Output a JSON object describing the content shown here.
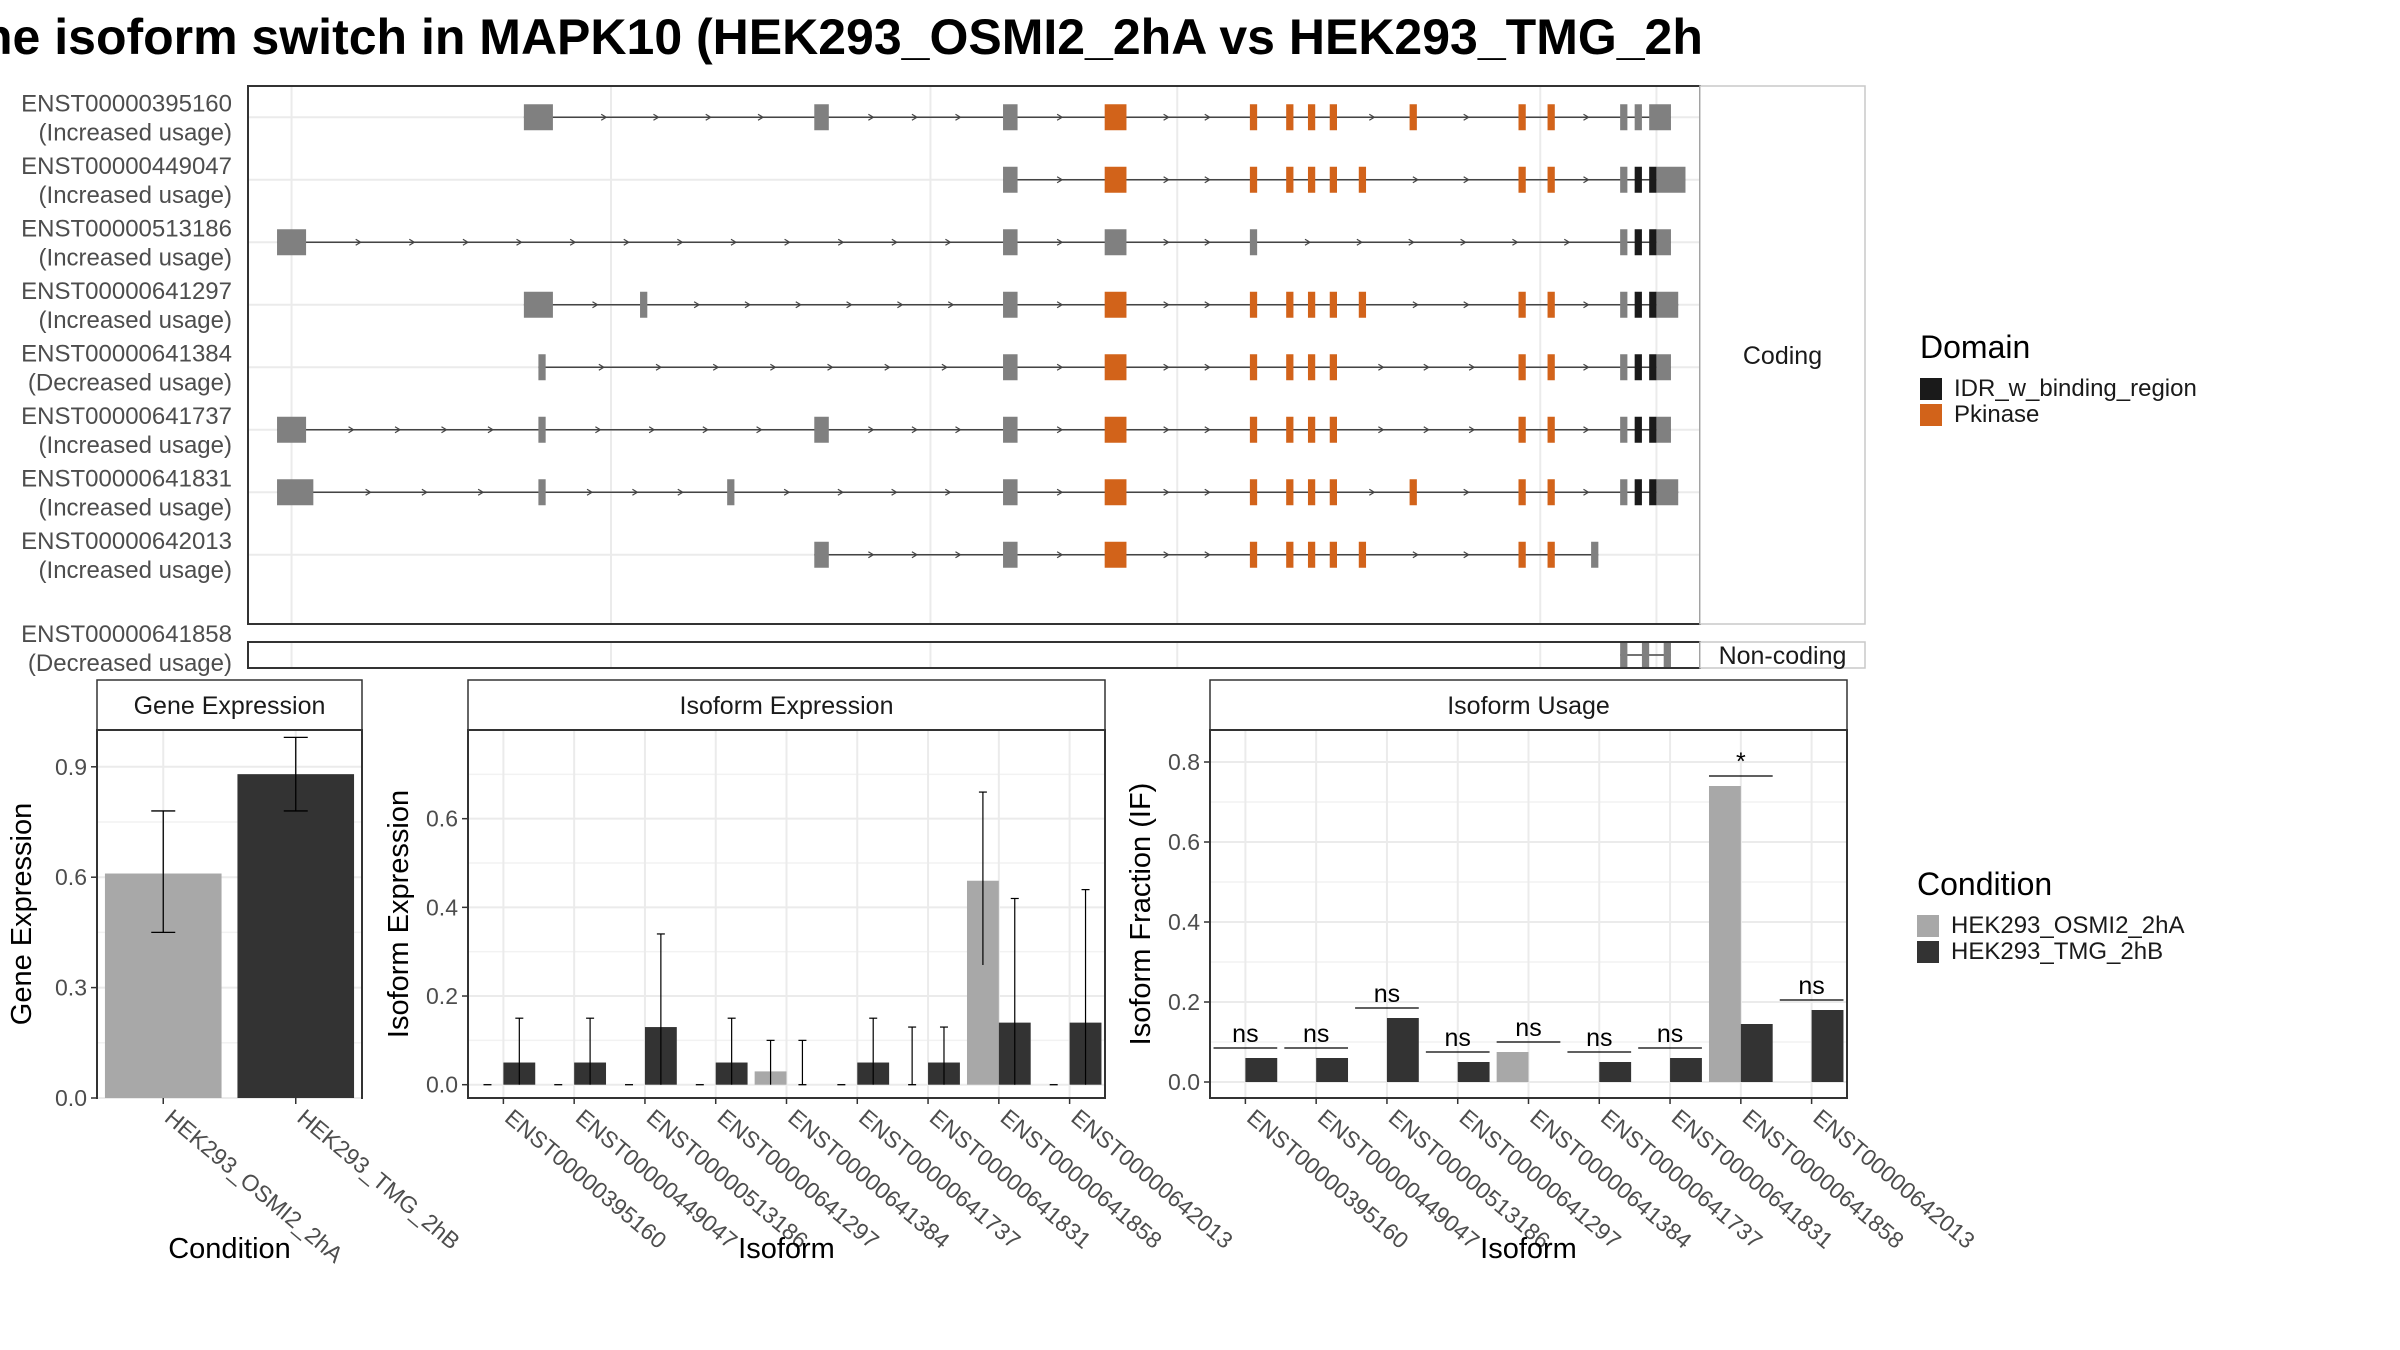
{
  "title": "he isoform switch in MAPK10 (HEK293_OSMI2_2hA vs HEK293_TMG_2h",
  "colors": {
    "exon": "#808080",
    "idr": "#1a1a1a",
    "pkinase": "#d2631a",
    "cond_a": "#a8a8a8",
    "cond_b": "#333333",
    "grid": "#ebebeb",
    "border": "#333333"
  },
  "chart_data": [
    {
      "type": "gene-structure",
      "facets": [
        "Coding",
        "Non-coding"
      ],
      "legend_title": "Domain",
      "legend": [
        {
          "label": "IDR_w_binding_region",
          "color": "#1a1a1a"
        },
        {
          "label": "Pkinase",
          "color": "#d2631a"
        }
      ],
      "transcripts": [
        {
          "id": "ENST00000395160",
          "usage": "(Increased usage)",
          "facet": "Coding",
          "exons": [
            [
              0.19,
              0.21,
              "e"
            ],
            [
              0.39,
              0.4,
              "e"
            ],
            [
              0.52,
              0.53,
              "e"
            ],
            [
              0.59,
              0.605,
              "k"
            ],
            [
              0.69,
              0.695,
              "k"
            ],
            [
              0.715,
              0.72,
              "k"
            ],
            [
              0.73,
              0.735,
              "k"
            ],
            [
              0.745,
              0.75,
              "k"
            ],
            [
              0.8,
              0.805,
              "k"
            ],
            [
              0.875,
              0.88,
              "k"
            ],
            [
              0.895,
              0.9,
              "k"
            ],
            [
              0.945,
              0.95,
              "e"
            ],
            [
              0.955,
              0.96,
              "e"
            ],
            [
              0.965,
              0.98,
              "e"
            ]
          ]
        },
        {
          "id": "ENST00000449047",
          "usage": "(Increased usage)",
          "facet": "Coding",
          "exons": [
            [
              0.52,
              0.53,
              "e"
            ],
            [
              0.59,
              0.605,
              "k"
            ],
            [
              0.69,
              0.695,
              "k"
            ],
            [
              0.715,
              0.72,
              "k"
            ],
            [
              0.73,
              0.735,
              "k"
            ],
            [
              0.745,
              0.75,
              "k"
            ],
            [
              0.765,
              0.77,
              "k"
            ],
            [
              0.875,
              0.88,
              "k"
            ],
            [
              0.895,
              0.9,
              "k"
            ],
            [
              0.945,
              0.95,
              "e"
            ],
            [
              0.955,
              0.96,
              "i"
            ],
            [
              0.965,
              0.97,
              "i"
            ],
            [
              0.97,
              0.99,
              "e"
            ]
          ]
        },
        {
          "id": "ENST00000513186",
          "usage": "(Increased usage)",
          "facet": "Coding",
          "exons": [
            [
              0.02,
              0.04,
              "e"
            ],
            [
              0.52,
              0.53,
              "e"
            ],
            [
              0.59,
              0.605,
              "e"
            ],
            [
              0.69,
              0.695,
              "e"
            ],
            [
              0.945,
              0.95,
              "e"
            ],
            [
              0.955,
              0.96,
              "i"
            ],
            [
              0.965,
              0.97,
              "i"
            ],
            [
              0.97,
              0.98,
              "e"
            ]
          ]
        },
        {
          "id": "ENST00000641297",
          "usage": "(Increased usage)",
          "facet": "Coding",
          "exons": [
            [
              0.19,
              0.21,
              "e"
            ],
            [
              0.27,
              0.275,
              "e"
            ],
            [
              0.52,
              0.53,
              "e"
            ],
            [
              0.59,
              0.605,
              "k"
            ],
            [
              0.69,
              0.695,
              "k"
            ],
            [
              0.715,
              0.72,
              "k"
            ],
            [
              0.73,
              0.735,
              "k"
            ],
            [
              0.745,
              0.75,
              "k"
            ],
            [
              0.765,
              0.77,
              "k"
            ],
            [
              0.875,
              0.88,
              "k"
            ],
            [
              0.895,
              0.9,
              "k"
            ],
            [
              0.945,
              0.95,
              "e"
            ],
            [
              0.955,
              0.96,
              "i"
            ],
            [
              0.965,
              0.97,
              "i"
            ],
            [
              0.97,
              0.985,
              "e"
            ]
          ]
        },
        {
          "id": "ENST00000641384",
          "usage": "(Decreased usage)",
          "facet": "Coding",
          "exons": [
            [
              0.2,
              0.205,
              "e"
            ],
            [
              0.52,
              0.53,
              "e"
            ],
            [
              0.59,
              0.605,
              "k"
            ],
            [
              0.69,
              0.695,
              "k"
            ],
            [
              0.715,
              0.72,
              "k"
            ],
            [
              0.73,
              0.735,
              "k"
            ],
            [
              0.745,
              0.75,
              "k"
            ],
            [
              0.875,
              0.88,
              "k"
            ],
            [
              0.895,
              0.9,
              "k"
            ],
            [
              0.945,
              0.95,
              "e"
            ],
            [
              0.955,
              0.96,
              "i"
            ],
            [
              0.965,
              0.97,
              "i"
            ],
            [
              0.97,
              0.98,
              "e"
            ]
          ]
        },
        {
          "id": "ENST00000641737",
          "usage": "(Increased usage)",
          "facet": "Coding",
          "exons": [
            [
              0.02,
              0.04,
              "e"
            ],
            [
              0.2,
              0.205,
              "e"
            ],
            [
              0.39,
              0.4,
              "e"
            ],
            [
              0.52,
              0.53,
              "e"
            ],
            [
              0.59,
              0.605,
              "k"
            ],
            [
              0.69,
              0.695,
              "k"
            ],
            [
              0.715,
              0.72,
              "k"
            ],
            [
              0.73,
              0.735,
              "k"
            ],
            [
              0.745,
              0.75,
              "k"
            ],
            [
              0.875,
              0.88,
              "k"
            ],
            [
              0.895,
              0.9,
              "k"
            ],
            [
              0.945,
              0.95,
              "e"
            ],
            [
              0.955,
              0.96,
              "i"
            ],
            [
              0.965,
              0.97,
              "i"
            ],
            [
              0.97,
              0.98,
              "e"
            ]
          ]
        },
        {
          "id": "ENST00000641831",
          "usage": "(Increased usage)",
          "facet": "Coding",
          "exons": [
            [
              0.02,
              0.045,
              "e"
            ],
            [
              0.2,
              0.205,
              "e"
            ],
            [
              0.33,
              0.335,
              "e"
            ],
            [
              0.52,
              0.53,
              "e"
            ],
            [
              0.59,
              0.605,
              "k"
            ],
            [
              0.69,
              0.695,
              "k"
            ],
            [
              0.715,
              0.72,
              "k"
            ],
            [
              0.73,
              0.735,
              "k"
            ],
            [
              0.745,
              0.75,
              "k"
            ],
            [
              0.8,
              0.805,
              "k"
            ],
            [
              0.875,
              0.88,
              "k"
            ],
            [
              0.895,
              0.9,
              "k"
            ],
            [
              0.945,
              0.95,
              "e"
            ],
            [
              0.955,
              0.96,
              "i"
            ],
            [
              0.965,
              0.97,
              "i"
            ],
            [
              0.97,
              0.985,
              "e"
            ]
          ]
        },
        {
          "id": "ENST00000642013",
          "usage": "(Increased usage)",
          "facet": "Coding",
          "exons": [
            [
              0.39,
              0.4,
              "e"
            ],
            [
              0.52,
              0.53,
              "e"
            ],
            [
              0.59,
              0.605,
              "k"
            ],
            [
              0.69,
              0.695,
              "k"
            ],
            [
              0.715,
              0.72,
              "k"
            ],
            [
              0.73,
              0.735,
              "k"
            ],
            [
              0.745,
              0.75,
              "k"
            ],
            [
              0.765,
              0.77,
              "k"
            ],
            [
              0.875,
              0.88,
              "k"
            ],
            [
              0.895,
              0.9,
              "k"
            ],
            [
              0.925,
              0.93,
              "e"
            ]
          ]
        },
        {
          "id": "ENST00000641858",
          "usage": "(Decreased usage)",
          "facet": "Non-coding",
          "exons": [
            [
              0.945,
              0.95,
              "e"
            ],
            [
              0.96,
              0.965,
              "e"
            ],
            [
              0.975,
              0.98,
              "e"
            ]
          ]
        }
      ]
    },
    {
      "type": "bar",
      "title": "Gene Expression",
      "xlabel": "Condition",
      "ylabel": "Gene Expression",
      "ylim": [
        0,
        1.0
      ],
      "yticks": [
        "0.0",
        "0.3",
        "0.6",
        "0.9"
      ],
      "categories": [
        "HEK293_OSMI2_2hA",
        "HEK293_TMG_2hB"
      ],
      "values": [
        0.61,
        0.88
      ],
      "err_low": [
        0.45,
        0.78
      ],
      "err_high": [
        0.78,
        0.98
      ]
    },
    {
      "type": "bar",
      "title": "Isoform Expression",
      "xlabel": "Isoform",
      "ylabel": "Isoform Expression",
      "ylim": [
        -0.03,
        0.8
      ],
      "yticks": [
        "0.0",
        "0.2",
        "0.4",
        "0.6"
      ],
      "categories": [
        "ENST00000395160",
        "ENST00000449047",
        "ENST00000513186",
        "ENST00000641297",
        "ENST00000641384",
        "ENST00000641737",
        "ENST00000641831",
        "ENST00000641858",
        "ENST00000642013"
      ],
      "series": [
        {
          "name": "HEK293_OSMI2_2hA",
          "values": [
            0.0,
            0.0,
            0.0,
            0.0,
            0.03,
            0.0,
            0.0,
            0.46,
            0.0
          ],
          "err_high": [
            null,
            null,
            null,
            null,
            0.1,
            null,
            0.13,
            0.66,
            null
          ],
          "err_low": [
            null,
            null,
            null,
            null,
            0.0,
            null,
            null,
            0.27,
            null
          ]
        },
        {
          "name": "HEK293_TMG_2hB",
          "values": [
            0.05,
            0.05,
            0.13,
            0.05,
            0.0,
            0.05,
            0.05,
            0.14,
            0.14
          ],
          "err_high": [
            0.15,
            0.15,
            0.34,
            0.15,
            0.1,
            0.15,
            0.13,
            0.42,
            0.44
          ],
          "err_low": [
            0.0,
            0.0,
            0.0,
            0.0,
            0.0,
            0.0,
            0.0,
            0.0,
            0.0
          ]
        }
      ]
    },
    {
      "type": "bar",
      "title": "Isoform Usage",
      "xlabel": "Isoform",
      "ylabel": "Isoform Fraction (IF)",
      "ylim": [
        -0.04,
        0.88
      ],
      "yticks": [
        "0.0",
        "0.2",
        "0.4",
        "0.6",
        "0.8"
      ],
      "categories": [
        "ENST00000395160",
        "ENST00000449047",
        "ENST00000513186",
        "ENST00000641297",
        "ENST00000641384",
        "ENST00000641737",
        "ENST00000641831",
        "ENST00000641858",
        "ENST00000642013"
      ],
      "series": [
        {
          "name": "HEK293_OSMI2_2hA",
          "values": [
            0.0,
            0.0,
            0.0,
            0.0,
            0.075,
            0.0,
            0.0,
            0.74,
            0.0
          ]
        },
        {
          "name": "HEK293_TMG_2hB",
          "values": [
            0.06,
            0.06,
            0.16,
            0.05,
            0.0,
            0.05,
            0.06,
            0.145,
            0.18
          ]
        }
      ],
      "significance": [
        "ns",
        "ns",
        "ns",
        "ns",
        "ns",
        "ns",
        "ns",
        "*",
        "ns"
      ]
    }
  ],
  "condition_legend": {
    "title": "Condition",
    "items": [
      {
        "label": "HEK293_OSMI2_2hA",
        "color": "#a8a8a8"
      },
      {
        "label": "HEK293_TMG_2hB",
        "color": "#333333"
      }
    ]
  }
}
